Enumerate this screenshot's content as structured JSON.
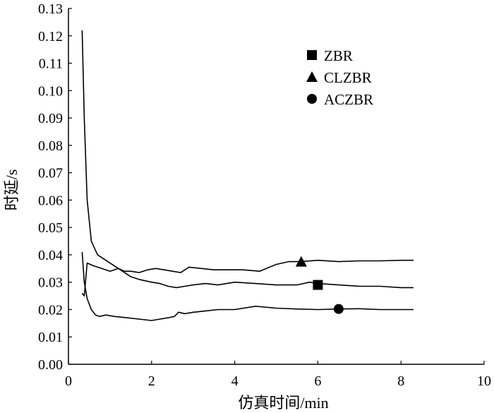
{
  "chart_data": {
    "type": "line",
    "title": "",
    "xlabel": "仿真时间/min",
    "ylabel": "时延/s",
    "xlim": [
      0,
      10
    ],
    "ylim": [
      0,
      0.13
    ],
    "xticks": [
      0,
      2,
      4,
      6,
      8,
      10
    ],
    "xtick_labels": [
      "0",
      "2",
      "4",
      "6",
      "8",
      "10"
    ],
    "yticks": [
      0,
      0.01,
      0.02,
      0.03,
      0.04,
      0.05,
      0.06,
      0.07,
      0.08,
      0.09,
      0.1,
      0.11,
      0.12,
      0.13
    ],
    "ytick_labels": [
      "0.00",
      "0.01",
      "0.02",
      "0.03",
      "0.04",
      "0.05",
      "0.06",
      "0.07",
      "0.08",
      "0.09",
      "0.10",
      "0.11",
      "0.12",
      "0.13"
    ],
    "grid": false,
    "legend_position": "top-right",
    "series": [
      {
        "name": "ZBR",
        "marker": "square",
        "marker_at": [
          6.0,
          0.029
        ],
        "x": [
          0.33,
          0.38,
          0.45,
          0.55,
          0.7,
          0.9,
          1.1,
          1.3,
          1.5,
          1.7,
          2.0,
          2.2,
          2.4,
          2.6,
          2.8,
          3.0,
          3.3,
          3.6,
          4.0,
          4.5,
          5.0,
          5.5,
          5.8,
          6.0,
          6.5,
          7.0,
          7.5,
          8.0,
          8.3
        ],
        "values": [
          0.122,
          0.09,
          0.06,
          0.045,
          0.04,
          0.038,
          0.036,
          0.034,
          0.032,
          0.031,
          0.03,
          0.0295,
          0.0285,
          0.028,
          0.0285,
          0.029,
          0.0295,
          0.029,
          0.03,
          0.0295,
          0.029,
          0.029,
          0.03,
          0.0295,
          0.029,
          0.0285,
          0.0285,
          0.028,
          0.028
        ]
      },
      {
        "name": "CLZBR",
        "marker": "triangle",
        "marker_at": [
          5.6,
          0.0375
        ],
        "x": [
          0.33,
          0.38,
          0.45,
          0.6,
          0.8,
          1.0,
          1.2,
          1.35,
          1.5,
          1.7,
          1.9,
          2.1,
          2.3,
          2.5,
          2.7,
          2.9,
          3.2,
          3.5,
          3.8,
          4.2,
          4.6,
          5.0,
          5.3,
          5.6,
          6.0,
          6.5,
          7.0,
          7.5,
          8.0,
          8.3
        ],
        "values": [
          0.026,
          0.025,
          0.037,
          0.036,
          0.035,
          0.034,
          0.035,
          0.034,
          0.034,
          0.0335,
          0.0345,
          0.035,
          0.0345,
          0.034,
          0.0335,
          0.0355,
          0.035,
          0.0345,
          0.0345,
          0.0345,
          0.034,
          0.0365,
          0.0375,
          0.0375,
          0.038,
          0.0375,
          0.0378,
          0.0378,
          0.038,
          0.038
        ]
      },
      {
        "name": "ACZBR",
        "marker": "circle",
        "marker_at": [
          6.5,
          0.0202
        ],
        "x": [
          0.33,
          0.38,
          0.45,
          0.55,
          0.65,
          0.75,
          0.9,
          1.1,
          1.4,
          1.7,
          2.0,
          2.2,
          2.4,
          2.55,
          2.65,
          2.8,
          3.0,
          3.3,
          3.6,
          4.0,
          4.5,
          5.0,
          5.5,
          6.0,
          6.5,
          7.0,
          7.5,
          8.0,
          8.3
        ],
        "values": [
          0.041,
          0.03,
          0.024,
          0.02,
          0.018,
          0.0175,
          0.018,
          0.0175,
          0.017,
          0.0165,
          0.016,
          0.0165,
          0.017,
          0.0175,
          0.019,
          0.0185,
          0.019,
          0.0195,
          0.02,
          0.02,
          0.0212,
          0.0205,
          0.0202,
          0.02,
          0.0202,
          0.0203,
          0.02,
          0.02,
          0.02
        ]
      }
    ]
  }
}
